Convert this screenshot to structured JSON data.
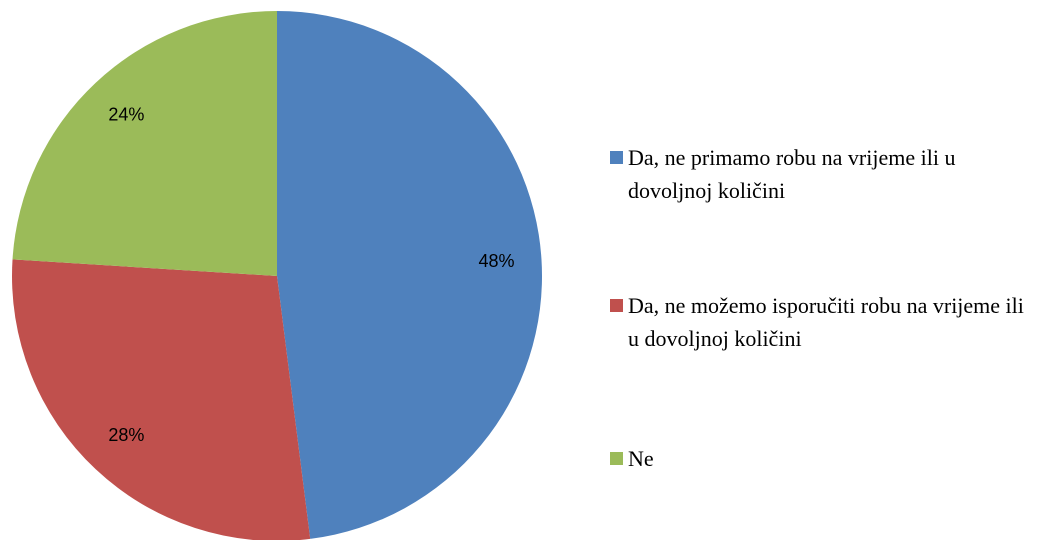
{
  "chart_data": {
    "type": "pie",
    "categories": [
      "Da, ne primamo robu na vrijeme ili u dovoljnoj količini",
      "Da, ne možemo isporučiti robu na vrijeme ili u dovoljnoj količini",
      "Ne"
    ],
    "values": [
      48,
      28,
      24
    ],
    "value_labels": [
      "48%",
      "28%",
      "24%"
    ],
    "colors": [
      "#4f81bd",
      "#c0504d",
      "#9bbb59"
    ],
    "legend": "right"
  }
}
